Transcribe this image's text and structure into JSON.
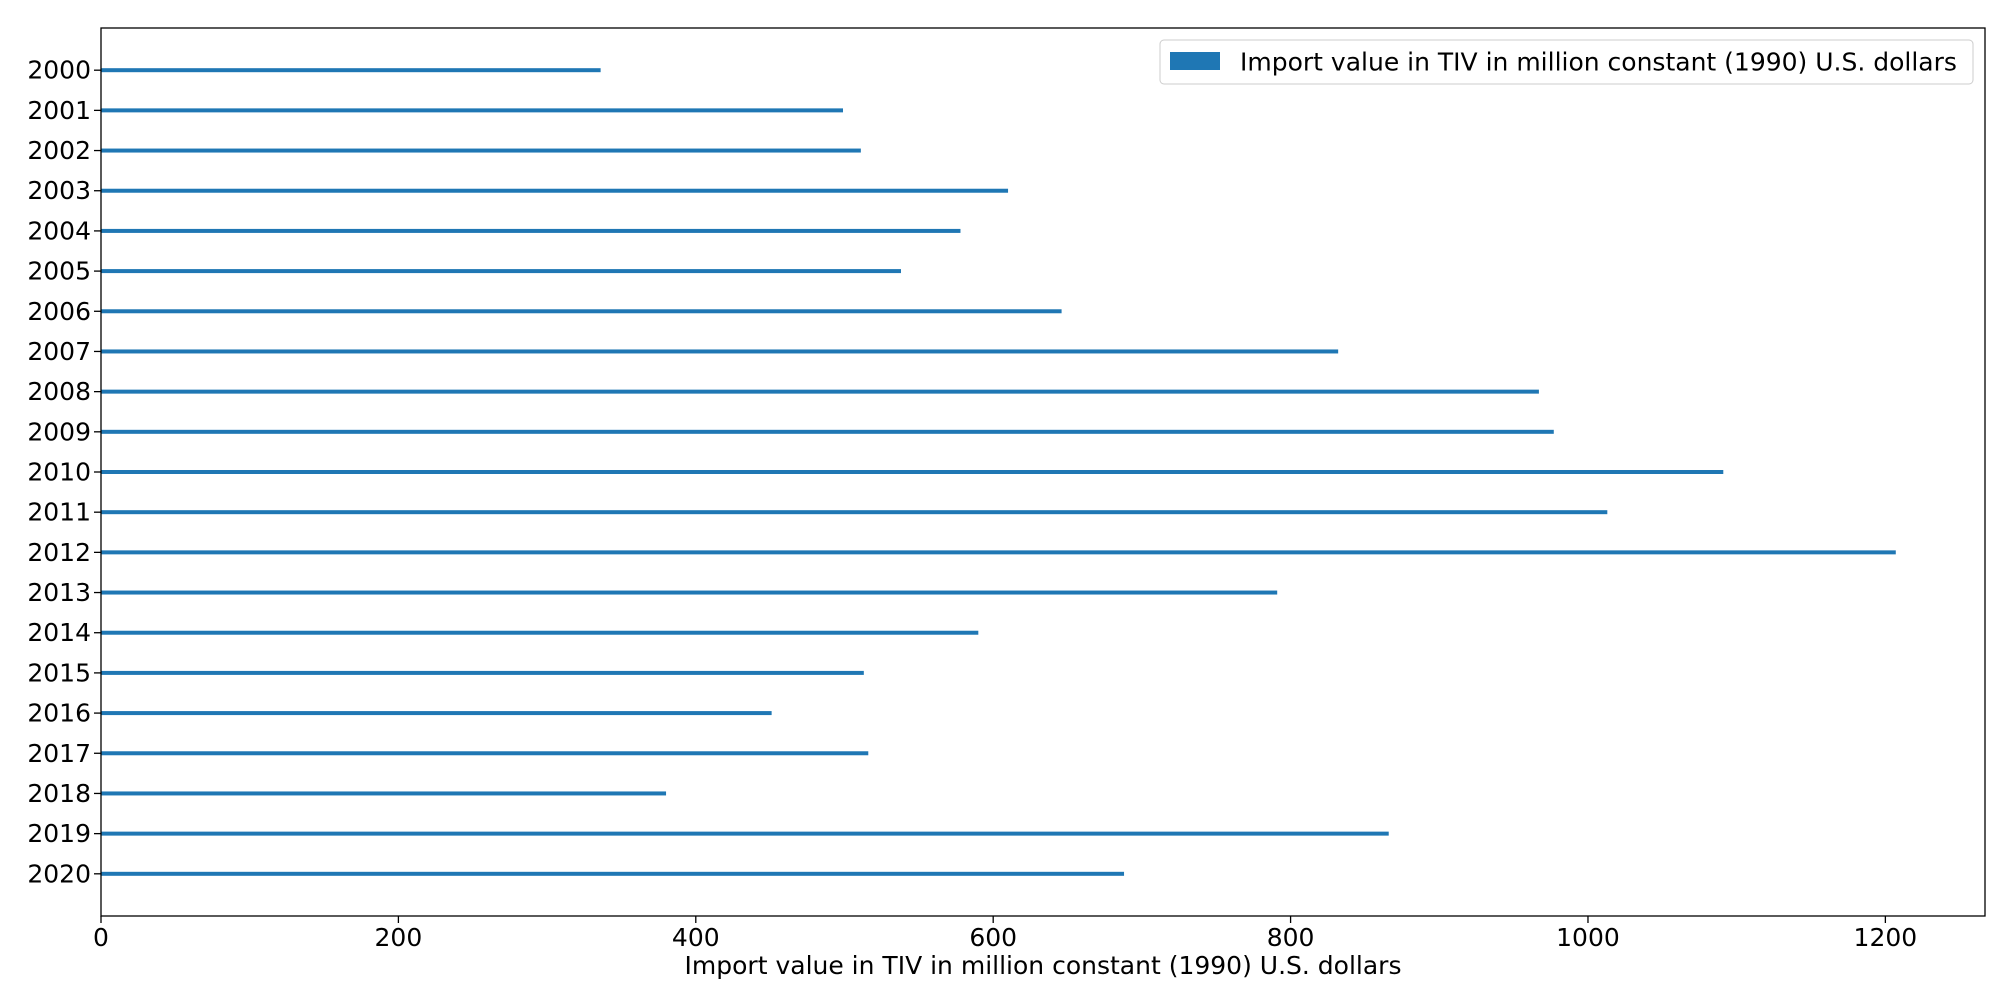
{
  "chart_data": {
    "type": "bar",
    "orientation": "horizontal",
    "categories": [
      "2000",
      "2001",
      "2002",
      "2003",
      "2004",
      "2005",
      "2006",
      "2007",
      "2008",
      "2009",
      "2010",
      "2011",
      "2012",
      "2013",
      "2014",
      "2015",
      "2016",
      "2017",
      "2018",
      "2019",
      "2020"
    ],
    "series": [
      {
        "name": "Import value in TIV in million constant (1990) U.S. dollars",
        "values": [
          336,
          499,
          511,
          610,
          578,
          538,
          646,
          832,
          967,
          977,
          1091,
          1013,
          1207,
          791,
          590,
          513,
          451,
          516,
          380,
          866,
          688
        ]
      }
    ],
    "xlabel": "Import value in TIV in million constant (1990) U.S. dollars",
    "ylabel": "",
    "title": "",
    "xlim": [
      0,
      1267
    ],
    "xticks": [
      0,
      200,
      400,
      600,
      800,
      1000,
      1200
    ],
    "grid": false,
    "legend_position": "top-right",
    "colors": {
      "bar": "#1f77b4",
      "axis": "#000000",
      "legend_border": "#cccccc",
      "background": "#ffffff"
    }
  }
}
